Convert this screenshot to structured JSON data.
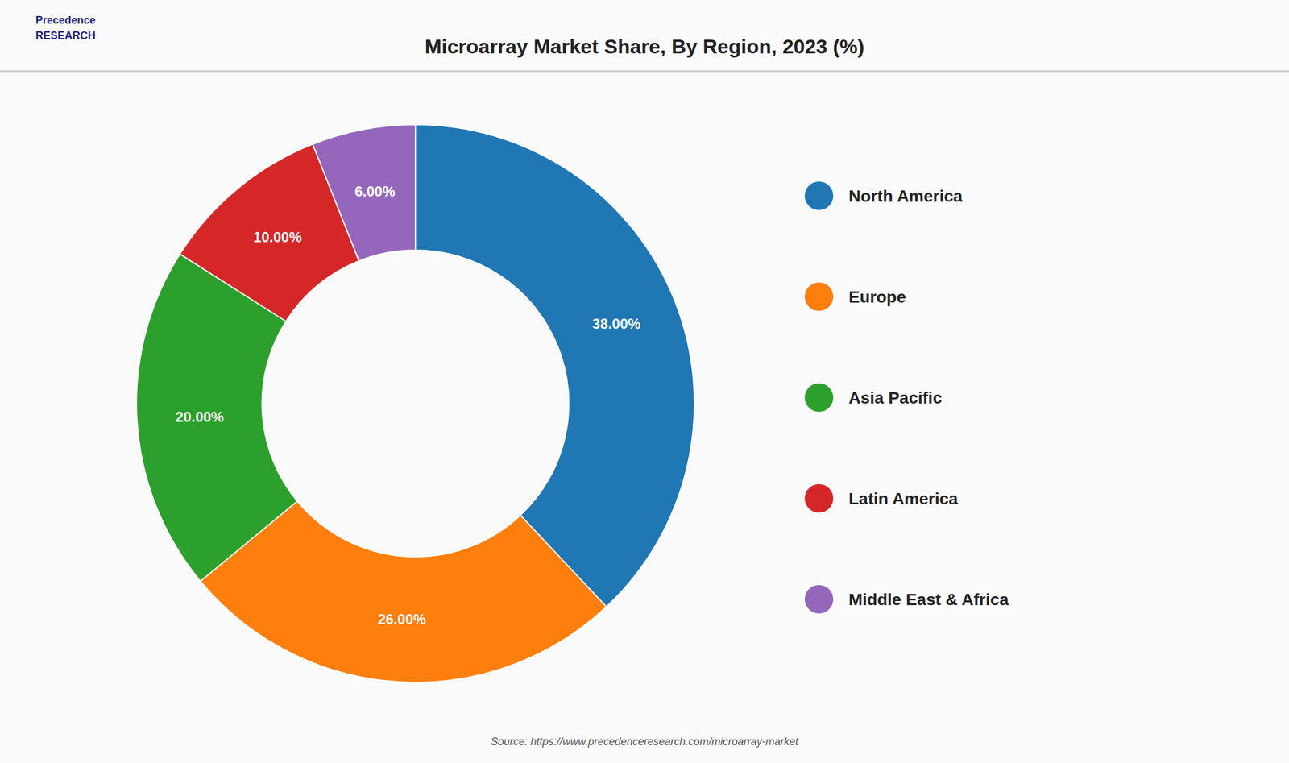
{
  "chart_data": {
    "type": "donut",
    "title": "Microarray Market Share, By Region, 2023 (%)",
    "categories": [
      "North America",
      "Europe",
      "Asia Pacific",
      "Latin America",
      "Middle East & Africa"
    ],
    "values": [
      38.0,
      26.0,
      20.0,
      10.0,
      6.0
    ],
    "value_labels": [
      "38.00%",
      "26.00%",
      "20.00%",
      "10.00%",
      "6.00%"
    ],
    "data_labels": true,
    "legend": "right",
    "annotations": [
      "Precedence",
      "RESEARCH",
      "Source: https://www.precedenceresearch.com/microarray-market"
    ]
  }
}
